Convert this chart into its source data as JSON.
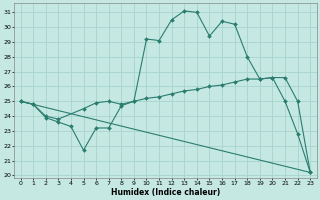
{
  "xlabel": "Humidex (Indice chaleur)",
  "bg_color": "#c5e8e3",
  "grid_color": "#a8d4ce",
  "line_color": "#2a7d6e",
  "marker": "D",
  "marker_size": 2.0,
  "xlim": [
    -0.5,
    23.5
  ],
  "ylim": [
    19.8,
    31.6
  ],
  "yticks": [
    20,
    21,
    22,
    23,
    24,
    25,
    26,
    27,
    28,
    29,
    30,
    31
  ],
  "xticks": [
    0,
    1,
    2,
    3,
    4,
    5,
    6,
    7,
    8,
    9,
    10,
    11,
    12,
    13,
    14,
    15,
    16,
    17,
    18,
    19,
    20,
    21,
    22,
    23
  ],
  "line1_x": [
    0,
    1,
    2,
    3,
    4,
    5,
    6,
    7,
    8,
    9,
    10,
    11,
    12,
    13,
    14,
    15,
    16,
    17,
    18,
    19,
    20,
    21,
    22,
    23
  ],
  "line1_y": [
    25.0,
    24.8,
    23.9,
    23.6,
    23.3,
    21.7,
    23.2,
    23.2,
    24.7,
    25.0,
    29.2,
    29.1,
    30.5,
    31.1,
    31.0,
    29.4,
    30.4,
    30.2,
    28.0,
    26.5,
    26.6,
    25.0,
    22.8,
    20.2
  ],
  "line2_x": [
    0,
    1,
    2,
    3,
    5,
    6,
    7,
    8,
    9,
    10,
    11,
    12,
    13,
    14,
    15,
    16,
    17,
    18,
    19,
    20,
    21,
    22,
    23
  ],
  "line2_y": [
    25.0,
    24.8,
    24.0,
    23.8,
    24.5,
    24.9,
    25.0,
    24.8,
    25.0,
    25.2,
    25.3,
    25.5,
    25.7,
    25.8,
    26.0,
    26.1,
    26.3,
    26.5,
    26.5,
    26.6,
    26.6,
    25.0,
    20.2
  ],
  "line3_x": [
    0,
    23
  ],
  "line3_y": [
    25.0,
    20.2
  ]
}
